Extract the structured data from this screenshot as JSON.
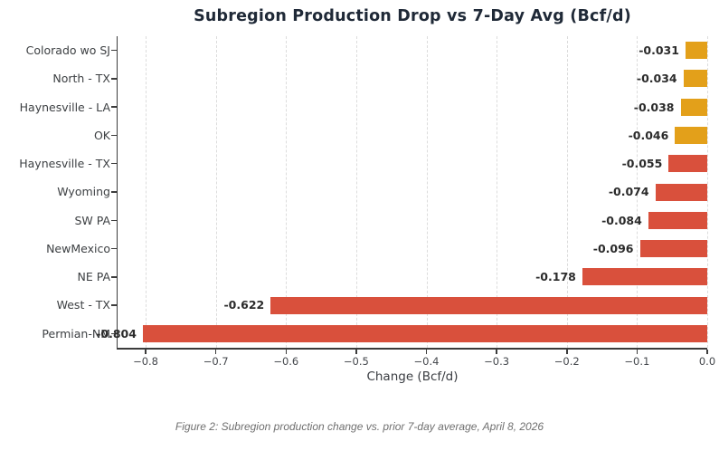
{
  "chart_data": {
    "type": "bar",
    "orientation": "horizontal",
    "title": "Subregion Production Drop vs 7-Day Avg (Bcf/d)",
    "xlabel": "Change (Bcf/d)",
    "categories": [
      "Colorado wo SJ",
      "North - TX",
      "Haynesville - LA",
      "OK",
      "Haynesville - TX",
      "Wyoming",
      "SW PA",
      "NewMexico",
      "NE PA",
      "West - TX",
      "Permian-NM"
    ],
    "values": [
      -0.031,
      -0.034,
      -0.038,
      -0.046,
      -0.055,
      -0.074,
      -0.084,
      -0.096,
      -0.178,
      -0.622,
      -0.804
    ],
    "value_labels": [
      "-0.031",
      "-0.034",
      "-0.038",
      "-0.046",
      "-0.055",
      "-0.074",
      "-0.084",
      "-0.096",
      "-0.178",
      "-0.622",
      "-0.804"
    ],
    "bar_colors": [
      "#e3a01a",
      "#e3a01a",
      "#e3a01a",
      "#e3a01a",
      "#d9503c",
      "#d9503c",
      "#d9503c",
      "#d9503c",
      "#d9503c",
      "#d9503c",
      "#d9503c"
    ],
    "x_tick_values": [
      -0.8,
      -0.7,
      -0.6,
      -0.5,
      -0.4,
      -0.3,
      -0.2,
      -0.1,
      0.0
    ],
    "x_tick_labels": [
      "−0.8",
      "−0.7",
      "−0.6",
      "−0.5",
      "−0.4",
      "−0.3",
      "−0.2",
      "−0.1",
      "0.0"
    ],
    "xlim": [
      -0.84,
      0.0
    ],
    "grid": "vertical-dashed",
    "legend_position": "none"
  },
  "caption": "Figure 2: Subregion production change vs. prior 7-day average, April 8, 2026",
  "colors": {
    "orange": "#e3a01a",
    "red": "#d9503c",
    "title": "#1f2937",
    "category_label": "#3d4043",
    "value_label": "#2b2b2b",
    "tick_label": "#45484d",
    "axis_label": "#3a3d42",
    "grid": "#dcdcdc",
    "spine": "#3c3c3c",
    "caption": "#6f6f6f",
    "background": "#ffffff"
  }
}
